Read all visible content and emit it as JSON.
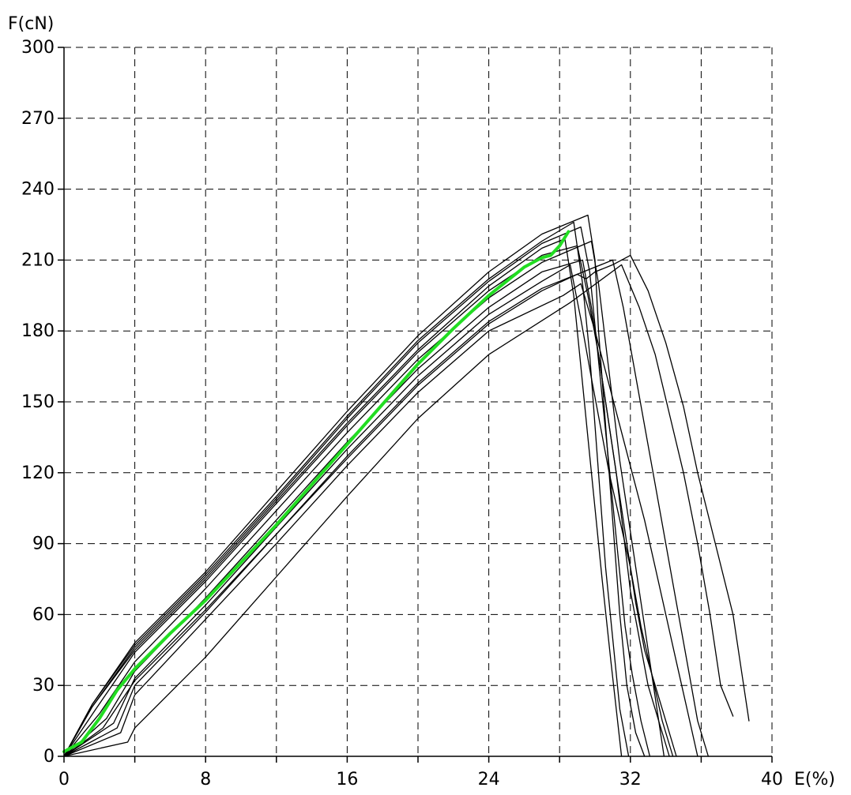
{
  "chart_data": {
    "type": "line",
    "title": "",
    "ylabel": "F(cN)",
    "xlabel": "E(%)",
    "xlim": [
      0,
      40
    ],
    "ylim": [
      0,
      300
    ],
    "x_ticks": [
      0,
      8,
      16,
      24,
      32,
      40
    ],
    "y_ticks": [
      0,
      30,
      60,
      90,
      120,
      150,
      180,
      210,
      240,
      270,
      300
    ],
    "grid": true,
    "grid_style": "dashed",
    "colors": {
      "tests": "#000000",
      "average": "#22dd22",
      "grid": "#000000"
    },
    "series": [
      {
        "style": "test",
        "x": [
          0,
          1.6,
          4,
          8,
          12,
          16,
          20,
          24,
          27,
          29.6,
          30.0,
          30.2,
          30.5,
          30.8,
          31.1,
          31.4,
          31.8,
          32.3,
          32.8
        ],
        "y": [
          0,
          22,
          48,
          78,
          112,
          146,
          178,
          205,
          221,
          229,
          210,
          180,
          150,
          120,
          90,
          60,
          30,
          10,
          0
        ]
      },
      {
        "style": "test",
        "x": [
          0,
          1.6,
          4,
          8,
          12,
          16,
          20,
          24,
          27,
          28.8,
          29.3,
          29.7,
          30.0,
          30.3,
          30.6,
          31.0,
          31.4,
          31.9
        ],
        "y": [
          0,
          22,
          47,
          77,
          110,
          144,
          176,
          202,
          218,
          226,
          200,
          170,
          140,
          110,
          80,
          50,
          20,
          0
        ]
      },
      {
        "style": "test",
        "x": [
          0,
          1.6,
          4,
          8,
          12,
          16,
          20,
          24,
          27,
          29.2,
          29.7,
          30.1,
          30.5,
          30.9,
          31.3,
          31.7,
          32.1,
          32.6,
          33.1
        ],
        "y": [
          0,
          21,
          46,
          76,
          109,
          143,
          175,
          201,
          217,
          224,
          205,
          175,
          145,
          115,
          85,
          55,
          35,
          15,
          0
        ]
      },
      {
        "style": "test",
        "x": [
          0,
          1.6,
          4,
          8,
          12,
          16,
          20,
          24,
          27,
          28.3,
          28.8,
          29.2,
          29.6,
          30.0,
          30.4,
          30.9,
          31.5
        ],
        "y": [
          0,
          21,
          45,
          75,
          108,
          141,
          172,
          199,
          215,
          219,
          195,
          165,
          135,
          105,
          75,
          40,
          0
        ]
      },
      {
        "style": "test",
        "x": [
          0,
          1.8,
          4,
          8,
          12,
          16,
          20,
          24,
          27,
          29.0,
          29.6,
          30.2,
          30.7,
          31.2,
          31.6,
          32.0,
          32.5,
          33.0,
          33.6,
          34.2
        ],
        "y": [
          0,
          20,
          44,
          74,
          107,
          140,
          171,
          197,
          212,
          216,
          195,
          170,
          145,
          120,
          95,
          70,
          50,
          30,
          15,
          0
        ]
      },
      {
        "style": "test",
        "x": [
          0,
          2.0,
          4,
          8,
          12,
          16,
          20,
          24,
          27,
          29.8,
          30.2,
          30.6,
          31.0,
          31.4,
          31.9,
          32.4,
          32.9,
          33.4,
          33.9
        ],
        "y": [
          0,
          18,
          40,
          71,
          104,
          137,
          168,
          194,
          209,
          218,
          200,
          175,
          150,
          125,
          100,
          75,
          50,
          25,
          0
        ]
      },
      {
        "style": "test",
        "x": [
          0,
          2.4,
          4,
          8,
          12,
          16,
          20,
          24,
          27,
          29.3,
          29.8,
          30.3,
          30.8,
          31.3,
          31.8,
          32.3,
          32.8,
          33.4,
          34.0,
          34.6
        ],
        "y": [
          0,
          16,
          36,
          67,
          100,
          133,
          164,
          190,
          205,
          210,
          190,
          165,
          140,
          115,
          90,
          65,
          45,
          30,
          15,
          0
        ]
      },
      {
        "style": "test",
        "x": [
          0,
          2.8,
          4,
          8,
          12,
          16,
          20,
          24,
          27,
          28.6,
          29.2,
          29.8,
          30.3,
          30.8,
          31.4,
          32.0,
          32.6,
          33.2,
          33.8,
          34.4
        ],
        "y": [
          0,
          14,
          33,
          64,
          97,
          130,
          161,
          187,
          201,
          208,
          185,
          160,
          140,
          120,
          100,
          80,
          55,
          35,
          15,
          0
        ]
      },
      {
        "style": "test",
        "x": [
          0,
          3.0,
          4,
          8,
          12,
          16,
          20,
          24,
          27,
          31.0,
          31.6,
          32.2,
          32.8,
          33.4,
          34.0,
          34.6,
          35.2,
          35.8,
          36.4
        ],
        "y": [
          0,
          12,
          30,
          61,
          94,
          127,
          158,
          184,
          198,
          210,
          190,
          165,
          140,
          115,
          90,
          65,
          40,
          15,
          0
        ]
      },
      {
        "style": "test",
        "x": [
          0,
          3.2,
          4,
          8,
          12,
          16,
          20,
          24,
          28.2,
          29.2,
          30.0,
          30.7,
          31.4,
          32.1,
          32.8,
          33.4,
          34.0,
          34.6,
          35.2,
          35.8
        ],
        "y": [
          0,
          10,
          26,
          58,
          90,
          123,
          154,
          180,
          195,
          200,
          180,
          160,
          140,
          120,
          100,
          80,
          60,
          40,
          20,
          0
        ]
      },
      {
        "style": "test",
        "x": [
          0,
          3.6,
          4,
          8,
          12,
          16,
          20,
          24,
          28.6,
          31.5,
          32.5,
          33.4,
          34.2,
          35.0,
          35.8,
          36.5,
          37.1,
          37.8
        ],
        "y": [
          0,
          6,
          12,
          42,
          76,
          110,
          143,
          170,
          192,
          208,
          190,
          170,
          145,
          120,
          90,
          60,
          30,
          17
        ]
      },
      {
        "style": "test",
        "x": [
          0,
          2.2,
          4,
          8,
          12,
          16,
          20,
          24,
          27,
          29.0,
          29.5,
          30.0,
          31.0,
          32.0,
          33.0,
          34.0,
          35.0,
          35.8,
          36.8,
          37.8,
          38.3,
          38.7
        ],
        "y": [
          0,
          12,
          32,
          62,
          94,
          126,
          157,
          183,
          197,
          204,
          202,
          205,
          208,
          212,
          197,
          175,
          148,
          120,
          90,
          60,
          35,
          15
        ]
      },
      {
        "style": "average",
        "x": [
          0,
          1,
          2,
          3,
          4,
          6,
          8,
          10,
          12,
          14,
          16,
          18,
          20,
          22,
          24,
          26,
          27,
          27.5,
          28,
          28.5
        ],
        "y": [
          2,
          6,
          16,
          28,
          37,
          52,
          66,
          82,
          98,
          115,
          132,
          149,
          166,
          181,
          195,
          207,
          211,
          212,
          216,
          222
        ]
      }
    ]
  }
}
